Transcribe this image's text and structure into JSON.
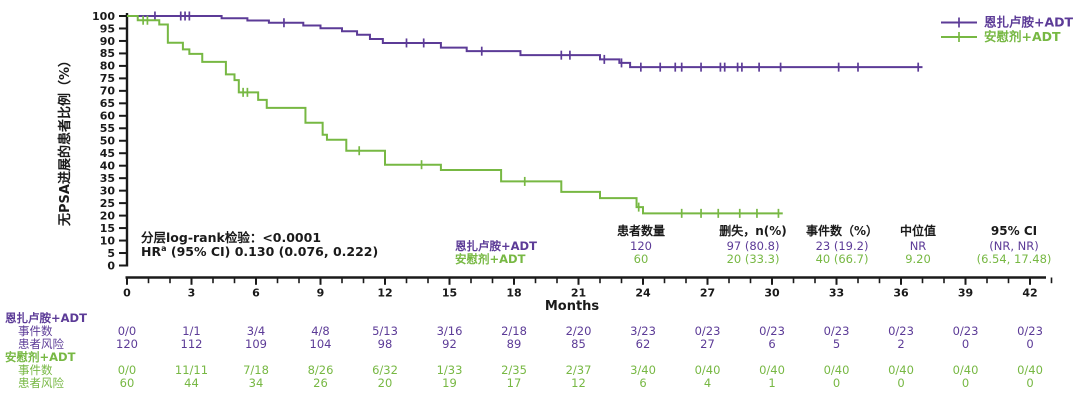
{
  "colors": {
    "purple": "#5C3B97",
    "green": "#77B843",
    "axis": "#1A1A1A"
  },
  "legend": {
    "items": [
      {
        "id": "enzalutamide",
        "label": "恩扎卢胺+ADT",
        "color_key": "purple"
      },
      {
        "id": "placebo",
        "label": "安慰剂+ADT",
        "color_key": "green"
      }
    ]
  },
  "stats": {
    "line1": "分层log-rank检验：<0.0001",
    "hr_base": "HR",
    "hr_sup": "a",
    "hr_rest": " (95% CI) 0.130 (0.076, 0.222)"
  },
  "chart_data": {
    "type": "km_step_curve",
    "title": "",
    "xlabel": "Months",
    "ylabel": "无PSA进展的患者比例（%）",
    "xlim": [
      0,
      43
    ],
    "ylim": [
      0,
      100
    ],
    "xticks": [
      0,
      3,
      6,
      9,
      12,
      15,
      18,
      21,
      24,
      27,
      30,
      33,
      36,
      39,
      42
    ],
    "xminor_step": 1,
    "yticks": [
      0,
      5,
      10,
      15,
      20,
      25,
      30,
      35,
      40,
      45,
      50,
      55,
      60,
      65,
      70,
      75,
      80,
      85,
      90,
      95,
      100
    ],
    "grid": false,
    "legend_position": "top-right",
    "series": [
      {
        "name": "恩扎卢胺+ADT",
        "color_key": "purple",
        "start": 100,
        "steps": [
          [
            4.4,
            99.1
          ],
          [
            5.6,
            98.2
          ],
          [
            6.6,
            97.3
          ],
          [
            8.2,
            96.2
          ],
          [
            9.0,
            95.1
          ],
          [
            10.0,
            93.9
          ],
          [
            10.7,
            92.5
          ],
          [
            11.3,
            90.8
          ],
          [
            11.9,
            89.2
          ],
          [
            14.6,
            87.3
          ],
          [
            15.8,
            85.9
          ],
          [
            18.3,
            84.3
          ],
          [
            22.0,
            82.6
          ],
          [
            22.9,
            81.2
          ],
          [
            23.4,
            79.5
          ]
        ],
        "end_month": 37.0,
        "censors": [
          [
            1.3,
            100
          ],
          [
            2.5,
            100
          ],
          [
            2.7,
            100
          ],
          [
            2.9,
            100
          ],
          [
            7.3,
            97.3
          ],
          [
            13.0,
            89.2
          ],
          [
            13.8,
            89.2
          ],
          [
            16.5,
            85.9
          ],
          [
            20.2,
            84.3
          ],
          [
            20.6,
            84.3
          ],
          [
            22.2,
            82.6
          ],
          [
            23.0,
            81.2
          ],
          [
            23.9,
            79.5
          ],
          [
            24.8,
            79.5
          ],
          [
            25.5,
            79.5
          ],
          [
            25.8,
            79.5
          ],
          [
            26.7,
            79.5
          ],
          [
            27.6,
            79.5
          ],
          [
            27.8,
            79.5
          ],
          [
            28.4,
            79.5
          ],
          [
            28.6,
            79.5
          ],
          [
            29.4,
            79.5
          ],
          [
            30.4,
            79.5
          ],
          [
            33.1,
            79.5
          ],
          [
            34.0,
            79.5
          ],
          [
            36.8,
            79.5
          ]
        ]
      },
      {
        "name": "安慰剂+ADT",
        "color_key": "green",
        "start": 100,
        "steps": [
          [
            0.5,
            98.3
          ],
          [
            1.5,
            96.6
          ],
          [
            1.9,
            89.3
          ],
          [
            2.6,
            86.6
          ],
          [
            2.9,
            84.8
          ],
          [
            3.5,
            81.6
          ],
          [
            4.6,
            76.6
          ],
          [
            5.0,
            74.3
          ],
          [
            5.2,
            69.4
          ],
          [
            6.1,
            66.4
          ],
          [
            6.5,
            63.2
          ],
          [
            8.3,
            57.2
          ],
          [
            9.1,
            52.4
          ],
          [
            9.3,
            50.4
          ],
          [
            10.2,
            46.0
          ],
          [
            12.0,
            40.4
          ],
          [
            14.6,
            38.3
          ],
          [
            17.4,
            33.7
          ],
          [
            20.2,
            29.5
          ],
          [
            22.0,
            27.0
          ],
          [
            23.7,
            23.4
          ],
          [
            24.0,
            20.9
          ]
        ],
        "end_month": 30.5,
        "censors": [
          [
            0.75,
            98.3
          ],
          [
            0.95,
            98.3
          ],
          [
            5.4,
            69.4
          ],
          [
            5.6,
            69.4
          ],
          [
            10.8,
            46.0
          ],
          [
            13.7,
            40.4
          ],
          [
            18.5,
            33.7
          ],
          [
            23.8,
            23.4
          ],
          [
            25.8,
            20.9
          ],
          [
            26.7,
            20.9
          ],
          [
            27.5,
            20.9
          ],
          [
            28.5,
            20.9
          ],
          [
            29.3,
            20.9
          ],
          [
            30.3,
            20.9
          ]
        ]
      }
    ]
  },
  "summary_table": {
    "headers": [
      "患者数量",
      "删失，n(%)",
      "事件数（%）",
      "中位值",
      "95% CI"
    ],
    "rows": [
      {
        "label": "恩扎卢胺+ADT",
        "color_key": "purple",
        "values": [
          "120",
          "97 (80.8)",
          "23 (19.2)",
          "NR",
          "(NR, NR)"
        ]
      },
      {
        "label": "安慰剂+ADT",
        "color_key": "green",
        "values": [
          "60",
          "20 (33.3)",
          "40 (66.7)",
          "9.20",
          "(6.54, 17.48)"
        ]
      }
    ]
  },
  "risk_table": {
    "months": [
      0,
      3,
      6,
      9,
      12,
      15,
      18,
      21,
      24,
      27,
      30,
      33,
      36,
      39,
      42
    ],
    "groups": [
      {
        "label": "恩扎卢胺+ADT",
        "color_key": "purple",
        "rows": [
          {
            "label": "事件数",
            "values": [
              "0/0",
              "1/1",
              "3/4",
              "4/8",
              "5/13",
              "3/16",
              "2/18",
              "2/20",
              "3/23",
              "0/23",
              "0/23",
              "0/23",
              "0/23",
              "0/23",
              "0/23"
            ]
          },
          {
            "label": "患者风险",
            "values": [
              "120",
              "112",
              "109",
              "104",
              "98",
              "92",
              "89",
              "85",
              "62",
              "27",
              "6",
              "5",
              "2",
              "0",
              "0"
            ]
          }
        ]
      },
      {
        "label": "安慰剂+ADT",
        "color_key": "green",
        "rows": [
          {
            "label": "事件数",
            "values": [
              "0/0",
              "11/11",
              "7/18",
              "8/26",
              "6/32",
              "1/33",
              "2/35",
              "2/37",
              "3/40",
              "0/40",
              "0/40",
              "0/40",
              "0/40",
              "0/40",
              "0/40"
            ]
          },
          {
            "label": "患者风险",
            "values": [
              "60",
              "44",
              "34",
              "26",
              "20",
              "19",
              "17",
              "12",
              "6",
              "4",
              "1",
              "0",
              "0",
              "0",
              "0"
            ]
          }
        ]
      }
    ]
  }
}
